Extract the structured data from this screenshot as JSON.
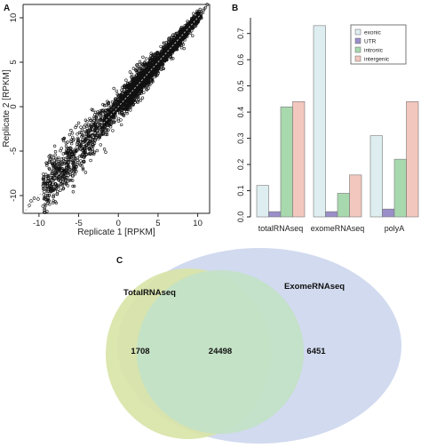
{
  "chart_data": [
    {
      "panel": "A",
      "type": "scatter",
      "xlabel": "Replicate 1 [RPKM]",
      "ylabel": "Replicate 2 [RPKM]",
      "xticks": [
        -10,
        -5,
        0,
        5,
        10
      ],
      "yticks": [
        -10,
        -5,
        0,
        5,
        10
      ],
      "xlim": [
        -12,
        11.5
      ],
      "ylim": [
        -12,
        11.5
      ],
      "diagonal": true,
      "note": ""
    },
    {
      "panel": "B",
      "type": "bar",
      "categories": [
        "totalRNAseq",
        "exomeRNAseq",
        "polyA"
      ],
      "series": [
        {
          "name": "exonic",
          "color": "#deeef0",
          "values": [
            0.12,
            0.73,
            0.31
          ]
        },
        {
          "name": "UTR",
          "color": "#9a8fc8",
          "values": [
            0.02,
            0.02,
            0.03
          ]
        },
        {
          "name": "intronic",
          "color": "#a8d9ae",
          "values": [
            0.42,
            0.09,
            0.22
          ]
        },
        {
          "name": "intergenic",
          "color": "#f2c7bd",
          "values": [
            0.44,
            0.16,
            0.44
          ]
        }
      ],
      "yticks": [
        "0.0",
        "0.1",
        "0.2",
        "0.3",
        "0.4",
        "0.5",
        "0.6",
        "0.7"
      ],
      "ylim": [
        0,
        0.76
      ],
      "legend": "top-right"
    },
    {
      "panel": "C",
      "type": "venn",
      "sets": [
        {
          "name": "TotalRNAseq",
          "color": "#d8e3a6"
        },
        {
          "name": "ExomeRNAseq",
          "color": "#c9d3ec"
        }
      ],
      "only_left": "1708",
      "intersection": "24498",
      "only_right": "6451"
    }
  ]
}
